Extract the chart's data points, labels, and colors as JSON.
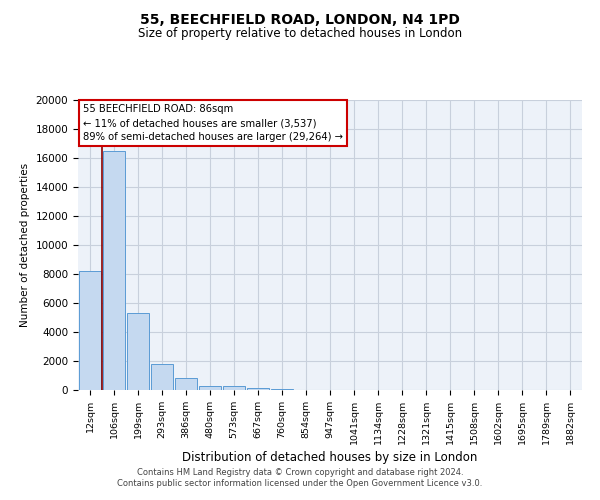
{
  "title": "55, BEECHFIELD ROAD, LONDON, N4 1PD",
  "subtitle": "Size of property relative to detached houses in London",
  "xlabel": "Distribution of detached houses by size in London",
  "ylabel": "Number of detached properties",
  "bar_labels": [
    "12sqm",
    "106sqm",
    "199sqm",
    "293sqm",
    "386sqm",
    "480sqm",
    "573sqm",
    "667sqm",
    "760sqm",
    "854sqm",
    "947sqm",
    "1041sqm",
    "1134sqm",
    "1228sqm",
    "1321sqm",
    "1415sqm",
    "1508sqm",
    "1602sqm",
    "1695sqm",
    "1789sqm",
    "1882sqm"
  ],
  "bar_values": [
    8200,
    16500,
    5300,
    1800,
    800,
    300,
    250,
    150,
    100,
    0,
    0,
    0,
    0,
    0,
    0,
    0,
    0,
    0,
    0,
    0,
    0
  ],
  "bar_color": "#c5d9f0",
  "bar_edge_color": "#5b9bd5",
  "highlight_line_color": "#8b0000",
  "annotation_title": "55 BEECHFIELD ROAD: 86sqm",
  "annotation_line1": "← 11% of detached houses are smaller (3,537)",
  "annotation_line2": "89% of semi-detached houses are larger (29,264) →",
  "annotation_box_color": "#ffffff",
  "annotation_box_edge": "#cc0000",
  "ylim": [
    0,
    20000
  ],
  "yticks": [
    0,
    2000,
    4000,
    6000,
    8000,
    10000,
    12000,
    14000,
    16000,
    18000,
    20000
  ],
  "grid_color": "#c8d0dc",
  "background_color": "#edf2f9",
  "footer_line1": "Contains HM Land Registry data © Crown copyright and database right 2024.",
  "footer_line2": "Contains public sector information licensed under the Open Government Licence v3.0."
}
